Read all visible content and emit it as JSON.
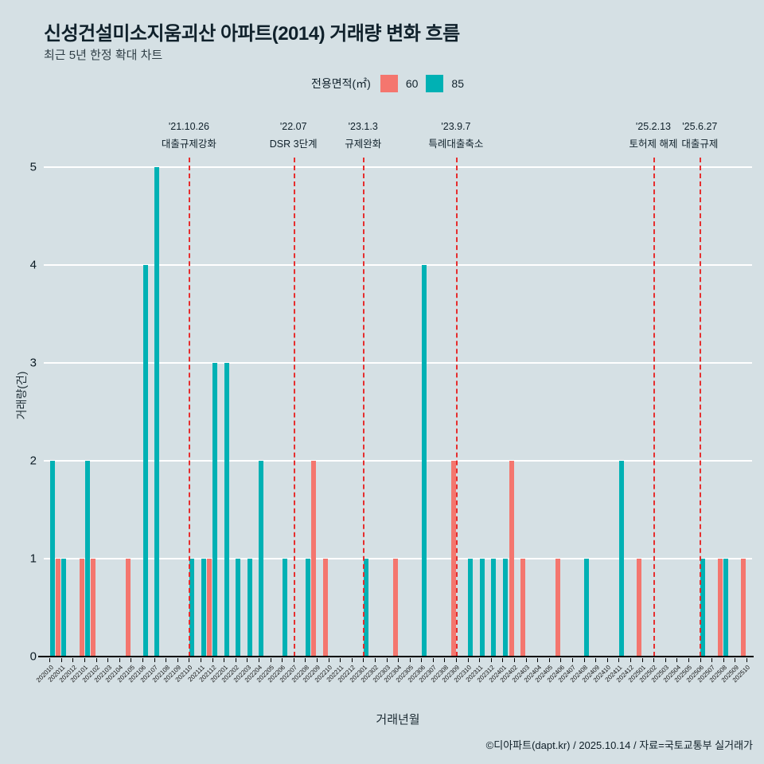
{
  "page": {
    "title": "신성건설미소지움괴산 아파트(2014) 거래량 변화 흐름",
    "subtitle": "최근 5년 한정 확대 차트",
    "footer": "©디아파트(dapt.kr) / 2025.10.14 / 자료=국토교통부 실거래가"
  },
  "legend": {
    "label": "전용면적(㎡)",
    "items": [
      {
        "name": "60",
        "color": "#f4766e"
      },
      {
        "name": "85",
        "color": "#00b1b4"
      }
    ]
  },
  "colors": {
    "background": "#d5e0e4",
    "grid": "#ffffff",
    "event_line": "#e62e2e",
    "axis": "#000000"
  },
  "chart_data": {
    "type": "bar",
    "title": "신성건설미소지움괴산 아파트(2014) 거래량 변화 흐름",
    "xlabel": "거래년월",
    "ylabel": "거래량(건)",
    "ylim": [
      0,
      5
    ],
    "yticks": [
      0,
      1,
      2,
      3,
      4,
      5
    ],
    "grid": true,
    "legend_position": "top",
    "categories": [
      "202010",
      "202011",
      "202012",
      "202101",
      "202102",
      "202103",
      "202104",
      "202105",
      "202106",
      "202107",
      "202108",
      "202109",
      "202110",
      "202111",
      "202112",
      "202201",
      "202202",
      "202203",
      "202204",
      "202205",
      "202206",
      "202207",
      "202208",
      "202209",
      "202210",
      "202211",
      "202212",
      "202301",
      "202302",
      "202303",
      "202304",
      "202305",
      "202306",
      "202307",
      "202308",
      "202309",
      "202310",
      "202311",
      "202312",
      "202401",
      "202402",
      "202403",
      "202404",
      "202405",
      "202406",
      "202407",
      "202408",
      "202409",
      "202410",
      "202411",
      "202412",
      "202501",
      "202502",
      "202503",
      "202504",
      "202505",
      "202506",
      "202507",
      "202508",
      "202509",
      "202510"
    ],
    "series": [
      {
        "name": "60",
        "color": "#f4766e",
        "values": [
          0,
          1,
          0,
          1,
          1,
          0,
          0,
          1,
          0,
          0,
          0,
          0,
          0,
          0,
          1,
          0,
          0,
          0,
          0,
          0,
          0,
          0,
          0,
          2,
          1,
          0,
          0,
          0,
          0,
          0,
          1,
          0,
          0,
          0,
          0,
          2,
          0,
          0,
          0,
          0,
          2,
          1,
          0,
          0,
          1,
          0,
          0,
          0,
          0,
          0,
          0,
          1,
          0,
          0,
          0,
          0,
          0,
          0,
          1,
          0,
          1
        ]
      },
      {
        "name": "85",
        "color": "#00b1b4",
        "values": [
          2,
          1,
          0,
          2,
          0,
          0,
          0,
          0,
          4,
          5,
          0,
          0,
          1,
          1,
          3,
          3,
          1,
          1,
          2,
          0,
          1,
          0,
          1,
          0,
          0,
          0,
          0,
          1,
          0,
          0,
          0,
          0,
          4,
          0,
          0,
          0,
          1,
          1,
          1,
          1,
          0,
          0,
          0,
          0,
          0,
          0,
          1,
          0,
          0,
          2,
          0,
          0,
          0,
          0,
          0,
          0,
          1,
          0,
          1,
          0,
          0
        ]
      }
    ],
    "events": [
      {
        "date": "'21.10.26",
        "label": "대출규제강화",
        "month": "202110"
      },
      {
        "date": "'22.07",
        "label": "DSR 3단계",
        "month": "202207"
      },
      {
        "date": "'23.1.3",
        "label": "규제완화",
        "month": "202301"
      },
      {
        "date": "'23.9.7",
        "label": "특례대출축소",
        "month": "202309"
      },
      {
        "date": "'25.2.13",
        "label": "토허제 해제",
        "month": "202502"
      },
      {
        "date": "'25.6.27",
        "label": "대출규제",
        "month": "202506"
      }
    ]
  }
}
